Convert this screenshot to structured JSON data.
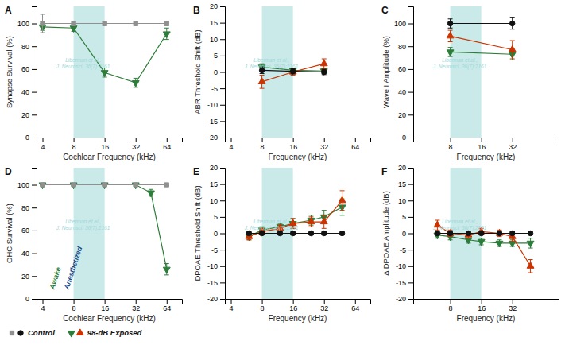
{
  "chart_data": [
    {
      "type": "line",
      "title": "A",
      "xlabel": "Cochlear Frequency (kHz)",
      "ylabel": "Synapse Survival (%)",
      "log": "x",
      "xlim": [
        3.5,
        90
      ],
      "ylim": [
        0,
        115
      ],
      "xticks": [
        4,
        8,
        16,
        32,
        64
      ],
      "yticks": [
        0,
        20,
        40,
        60,
        80,
        100
      ],
      "noise_band": {
        "x": [
          8,
          16
        ],
        "color": "#caeaea"
      },
      "annotations": [
        {
          "text": "Liberman et al.,\nJ. Neurosci. 36(7):2161",
          "color": "#a0d8d8"
        }
      ],
      "series": [
        {
          "name": "Control",
          "color": "#909090",
          "marker": "square",
          "x": [
            4,
            8,
            16,
            32,
            64
          ],
          "values": [
            100,
            100,
            100,
            100,
            100
          ],
          "yerr": [
            8,
            2,
            2,
            2,
            2
          ]
        },
        {
          "name": "98-dB Exposed",
          "color": "#2d7d3a",
          "marker": "triangle-down",
          "x": [
            4,
            8,
            16,
            32,
            64
          ],
          "values": [
            97,
            96,
            57,
            48,
            91
          ],
          "yerr": [
            3,
            3,
            4,
            4,
            5
          ]
        }
      ]
    },
    {
      "type": "line",
      "title": "B",
      "xlabel": "Frequency (kHz)",
      "ylabel": "ABR Threshold Shift (dB)",
      "log": "x",
      "xlim": [
        3.5,
        90
      ],
      "ylim": [
        -20,
        20
      ],
      "xticks": [
        4,
        8,
        16,
        32,
        64
      ],
      "yticks": [
        -20,
        -15,
        -10,
        -5,
        0,
        5,
        10,
        15,
        20
      ],
      "noise_band": {
        "x": [
          8,
          16
        ],
        "color": "#caeaea"
      },
      "annotations": [
        {
          "text": "Liberman et al.,\nJ. Neurosci. 36(7):2161",
          "color": "#a0d8d8"
        }
      ],
      "series": [
        {
          "name": "Control",
          "color": "#111111",
          "marker": "circle",
          "x": [
            8,
            16,
            32
          ],
          "values": [
            0.5,
            0.2,
            0
          ],
          "yerr": [
            1,
            0.8,
            0.8
          ]
        },
        {
          "name": "98-dB Exposed",
          "color": "#cc3300",
          "marker": "triangle-up",
          "x": [
            8,
            16,
            32
          ],
          "values": [
            -3,
            0,
            2.5
          ],
          "yerr": [
            2,
            1,
            1.5
          ]
        },
        {
          "name": "98-dB Exposed",
          "color": "#2d7d3a",
          "marker": "triangle-down",
          "x": [
            8,
            16,
            32
          ],
          "values": [
            1.5,
            0.5,
            0.3
          ],
          "yerr": [
            1,
            0.5,
            0.8
          ]
        }
      ]
    },
    {
      "type": "line",
      "title": "C",
      "xlabel": "Frequency (kHz)",
      "ylabel": "Wave I Amplitude (%)",
      "log": "x",
      "xlim": [
        3.5,
        90
      ],
      "ylim": [
        0,
        115
      ],
      "xticks": [
        8,
        16,
        32
      ],
      "yticks": [
        0,
        20,
        40,
        60,
        80,
        100
      ],
      "noise_band": {
        "x": [
          8,
          16
        ],
        "color": "#caeaea"
      },
      "annotations": [
        {
          "text": "Liberman et al.,\nJ. Neurosci. 36(7):2161",
          "color": "#a0d8d8"
        }
      ],
      "series": [
        {
          "name": "Control",
          "color": "#111111",
          "marker": "circle",
          "x": [
            8,
            32
          ],
          "values": [
            100,
            100
          ],
          "yerr": [
            4,
            5
          ]
        },
        {
          "name": "98-dB Exposed",
          "color": "#cc3300",
          "marker": "triangle-up",
          "x": [
            8,
            32
          ],
          "values": [
            89,
            77
          ],
          "yerr": [
            5,
            8
          ]
        },
        {
          "name": "98-dB Exposed",
          "color": "#2d7d3a",
          "marker": "triangle-down",
          "x": [
            8,
            32
          ],
          "values": [
            75,
            73
          ],
          "yerr": [
            4,
            5
          ]
        }
      ]
    },
    {
      "type": "line",
      "title": "D",
      "xlabel": "Cochlear Frequency (kHz)",
      "ylabel": "OHC Survival (%)",
      "log": "x",
      "xlim": [
        3.5,
        90
      ],
      "ylim": [
        0,
        115
      ],
      "xticks": [
        4,
        8,
        16,
        32,
        64
      ],
      "yticks": [
        0,
        20,
        40,
        60,
        80,
        100
      ],
      "noise_band": {
        "x": [
          8,
          16
        ],
        "color": "#caeaea"
      },
      "legend": "lower left",
      "annotations": [
        {
          "text": "Liberman et al.,\nJ. Neurosci. 36(7):2161",
          "color": "#a0d8d8"
        },
        {
          "text": "Awake",
          "color": "#2d7d3a"
        },
        {
          "text": "Anesthetized",
          "color": "#1a4a8a"
        }
      ],
      "series": [
        {
          "name": "Control",
          "color": "#909090",
          "marker": "square",
          "x": [
            4,
            8,
            16,
            32,
            64
          ],
          "values": [
            100,
            100,
            100,
            100,
            100
          ],
          "yerr": [
            1,
            1,
            1,
            1,
            1
          ]
        },
        {
          "name": "98-dB Exposed",
          "color": "#2d7d3a",
          "marker": "triangle-down",
          "x": [
            4,
            8,
            16,
            32,
            45,
            64
          ],
          "values": [
            100,
            100,
            100,
            100,
            93,
            26
          ],
          "yerr": [
            1,
            1,
            1,
            1,
            3,
            5
          ]
        }
      ]
    },
    {
      "type": "line",
      "title": "E",
      "xlabel": "Frequency (kHz)",
      "ylabel": "DPOAE Threshold Shift (dB)",
      "log": "x",
      "xlim": [
        3.5,
        90
      ],
      "ylim": [
        -20,
        20
      ],
      "xticks": [
        4,
        8,
        16,
        32,
        64
      ],
      "yticks": [
        -20,
        -15,
        -10,
        -5,
        0,
        5,
        10,
        15,
        20
      ],
      "noise_band": {
        "x": [
          8,
          16
        ],
        "color": "#caeaea"
      },
      "annotations": [
        {
          "text": "Liberman et al.,\nJ. Neurosci. 36(7):2161",
          "color": "#a0d8d8"
        }
      ],
      "series": [
        {
          "name": "Control",
          "color": "#111111",
          "marker": "circle",
          "x": [
            6,
            8,
            12,
            16,
            24,
            32,
            48
          ],
          "values": [
            0,
            0,
            0,
            0,
            0,
            0,
            0
          ],
          "yerr": [
            0.5,
            0.5,
            0.5,
            0.5,
            0.5,
            0.5,
            0.5
          ]
        },
        {
          "name": "98-dB Exposed",
          "color": "#cc3300",
          "marker": "triangle-up",
          "x": [
            6,
            8,
            12,
            16,
            24,
            32,
            48
          ],
          "values": [
            -1,
            0.5,
            1.5,
            3,
            3.5,
            3.5,
            10
          ],
          "yerr": [
            1,
            1,
            1,
            1.5,
            1.5,
            2,
            3
          ]
        },
        {
          "name": "98-dB Exposed",
          "color": "#2d7d3a",
          "marker": "triangle-down",
          "x": [
            6,
            8,
            12,
            16,
            24,
            32,
            48
          ],
          "values": [
            -1,
            1,
            2,
            3,
            4,
            5,
            8
          ],
          "yerr": [
            1,
            1,
            1,
            1.5,
            1.5,
            2,
            2.5
          ]
        }
      ]
    },
    {
      "type": "line",
      "title": "F",
      "xlabel": "Frequency (kHz)",
      "ylabel": "Δ DPOAE Amplitude (dB)",
      "log": "x",
      "xlim": [
        3.5,
        90
      ],
      "ylim": [
        -20,
        20
      ],
      "xticks": [
        8,
        16,
        32
      ],
      "yticks": [
        -20,
        -15,
        -10,
        -5,
        0,
        5,
        10,
        15,
        20
      ],
      "noise_band": {
        "x": [
          8,
          16
        ],
        "color": "#caeaea"
      },
      "annotations": [
        {
          "text": "Liberman et al.,\nJ. Neurosci. 36(7):2161",
          "color": "#a0d8d8"
        }
      ],
      "series": [
        {
          "name": "Control",
          "color": "#111111",
          "marker": "circle",
          "x": [
            6,
            8,
            12,
            16,
            24,
            32,
            48
          ],
          "values": [
            0,
            0,
            0,
            0,
            0,
            0,
            0
          ],
          "yerr": [
            0.5,
            0.5,
            0.5,
            0.5,
            0.5,
            0.5,
            0.5
          ]
        },
        {
          "name": "98-dB Exposed",
          "color": "#cc3300",
          "marker": "triangle-up",
          "x": [
            6,
            8,
            12,
            16,
            24,
            32,
            48
          ],
          "values": [
            2.5,
            0,
            -0.5,
            0.5,
            0,
            -1,
            -10
          ],
          "yerr": [
            1.5,
            1,
            1,
            1,
            1,
            1.5,
            2
          ]
        },
        {
          "name": "98-dB Exposed",
          "color": "#2d7d3a",
          "marker": "triangle-down",
          "x": [
            6,
            8,
            12,
            16,
            24,
            32,
            48
          ],
          "values": [
            -0.5,
            -1,
            -2,
            -2.5,
            -3,
            -3,
            -3
          ],
          "yerr": [
            1,
            1,
            1,
            1,
            1,
            1,
            1.5
          ]
        }
      ]
    }
  ]
}
